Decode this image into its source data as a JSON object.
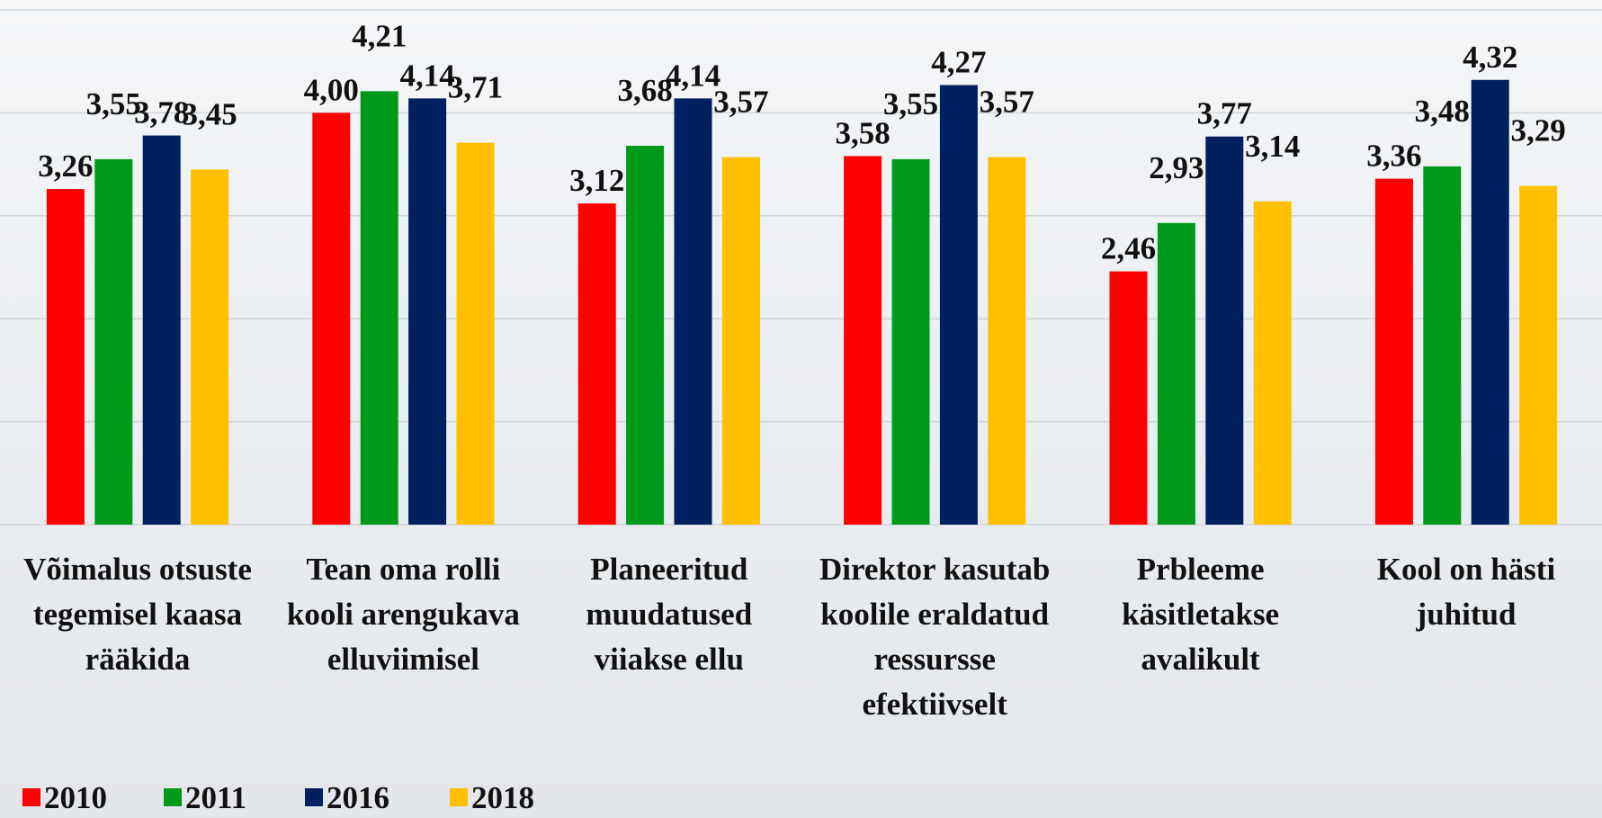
{
  "chart_data": {
    "type": "bar",
    "categories": [
      "Võimalus otsuste tegemisel kaasa rääkida",
      "Tean oma rolli kooli arengukava elluviimisel",
      "Planeeritud muudatused viiakse ellu",
      "Direktor kasutab koolile eraldatud ressursse efektiivselt",
      "Prbleeme käsitletakse avalikult",
      "Kool on hästi juhitud"
    ],
    "series": [
      {
        "name": "2010",
        "color": "#ff0000",
        "values": [
          3.26,
          4.0,
          3.12,
          3.58,
          2.46,
          3.36
        ],
        "value_labels": [
          "3,26",
          "4,00",
          "3,12",
          "3,58",
          "2,46",
          "3,36"
        ]
      },
      {
        "name": "2011",
        "color": "#009a1a",
        "values": [
          3.55,
          4.21,
          3.68,
          3.55,
          2.93,
          3.48
        ],
        "value_labels": [
          "3,55",
          "4,21",
          "3,68",
          "3,55",
          "2,93",
          "3,48"
        ]
      },
      {
        "name": "2016",
        "color": "#00205f",
        "values": [
          3.78,
          4.14,
          4.14,
          4.27,
          3.77,
          4.32
        ],
        "value_labels": [
          "3,78",
          "4,14",
          "4,14",
          "4,27",
          "3,77",
          "4,32"
        ]
      },
      {
        "name": "2018",
        "color": "#ffc000",
        "values": [
          3.45,
          3.71,
          3.57,
          3.57,
          3.14,
          3.29
        ],
        "value_labels": [
          "3,45",
          "3,71",
          "3,57",
          "3,57",
          "3,14",
          "3,29"
        ]
      }
    ],
    "ylim": [
      0,
      5
    ],
    "yticks": [
      0,
      1,
      2,
      3,
      4,
      5
    ],
    "grid": true,
    "legend": "bottom-left"
  }
}
